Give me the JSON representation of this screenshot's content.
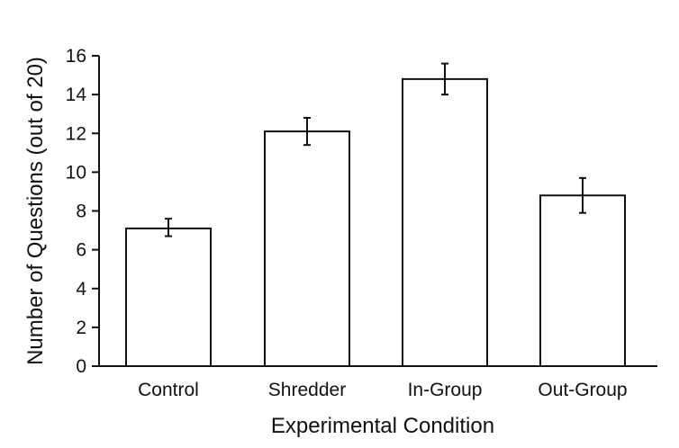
{
  "chart_data": {
    "type": "bar",
    "categories": [
      "Control",
      "Shredder",
      "In-Group",
      "Out-Group"
    ],
    "values": [
      7.1,
      12.1,
      14.8,
      8.8
    ],
    "error_bars": {
      "lower": [
        6.7,
        11.4,
        14.0,
        7.9
      ],
      "upper": [
        7.6,
        12.8,
        15.6,
        9.7
      ]
    },
    "xlabel": "Experimental Condition",
    "ylabel": "Number of Questions (out of 20)",
    "ylim": [
      0,
      16
    ],
    "yticks": [
      0,
      2,
      4,
      6,
      8,
      10,
      12,
      14,
      16
    ],
    "ytick_labels": [
      "0",
      "2",
      "4",
      "6",
      "8",
      "10",
      "12",
      "14",
      "16"
    ],
    "grid": false,
    "legend": "none",
    "colors": {
      "bar_fill": "#ffffff",
      "bar_stroke": "#111111",
      "axis": "#111111",
      "text": "#111111"
    }
  }
}
